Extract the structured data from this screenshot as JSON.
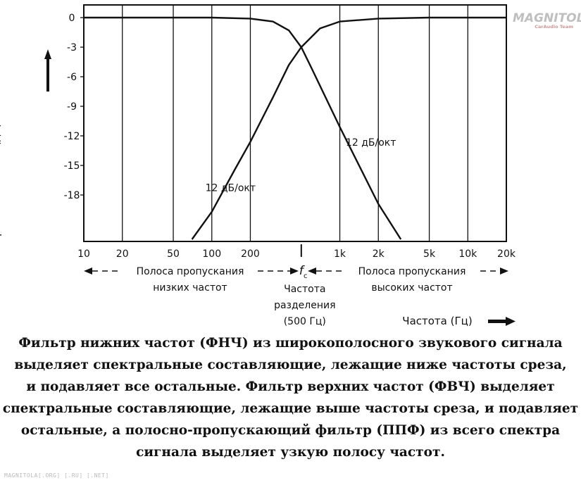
{
  "chart_data": {
    "type": "line",
    "ylabel": "Уровень сигнала (дБ)",
    "xlabel": "Частота (Гц)",
    "y_ticks": [
      "0",
      "-3",
      "-6",
      "-9",
      "-12",
      "-15",
      "-18"
    ],
    "y_tick_values": [
      0,
      -3,
      -6,
      -9,
      -12,
      -15,
      -18
    ],
    "x_ticks": [
      "10",
      "20",
      "50",
      "100",
      "200",
      "1k",
      "2k",
      "5k",
      "10k",
      "20k"
    ],
    "x_tick_values": [
      10,
      20,
      50,
      100,
      200,
      1000,
      2000,
      5000,
      10000,
      20000
    ],
    "x_scale": "log",
    "xlim": [
      10,
      20000
    ],
    "ylim": [
      -22.5,
      0
    ],
    "grid": true,
    "crossover_frequency": 500,
    "crossover_level": -3,
    "crossover_symbol": "f",
    "crossover_symbol_sub": "c",
    "series": [
      {
        "name": "ФНЧ",
        "x": [
          10,
          50,
          100,
          200,
          300,
          400,
          500,
          600,
          1000,
          2000,
          3000
        ],
        "y": [
          0,
          0,
          0,
          -0.1,
          -0.4,
          -1.3,
          -3,
          -5.1,
          -11.1,
          -18.9,
          -22.5
        ]
      },
      {
        "name": "ФВЧ",
        "x": [
          70,
          100,
          150,
          200,
          300,
          400,
          500,
          700,
          1000,
          2000,
          5000,
          20000
        ],
        "y": [
          -22.5,
          -19.7,
          -15.5,
          -12.6,
          -8.1,
          -4.8,
          -3,
          -1.1,
          -0.4,
          -0.1,
          0,
          0
        ]
      }
    ],
    "annotations": [
      {
        "text": "12 дБ/окт",
        "x": 140,
        "y": -17.6
      },
      {
        "text": "12 дБ/окт",
        "x": 1750,
        "y": -13
      }
    ],
    "bands": {
      "low": [
        "Полоса пропускания",
        "низких частот"
      ],
      "crossover": [
        "Частота",
        "разделения",
        "(500 Гц)"
      ],
      "high": [
        "Полоса пропускания",
        "высоких частот"
      ]
    }
  },
  "caption_lines": [
    "Фильтр нижних частот (ФНЧ) из широкополосного звукового сигнала",
    "выделяет спектральные составляющие, лежащие ниже частоты среза,",
    "и подавляет все остальные. Фильтр верхних частот (ФВЧ) выделяет",
    "спектральные составляющие, лежащие выше частоты среза, и подавляет",
    "остальные, а полосно-пропускающий фильтр (ППФ) из всего спектра",
    "сигнала выделяет узкую полосу частот."
  ],
  "watermark": {
    "title": "MAGNITOLA",
    "subtitle": "CarAudio Team"
  },
  "footer": "MAGNITOLA[.ORG] [.RU] [.NET]",
  "colors": {
    "ink": "#111111",
    "background": "#ffffff",
    "watermark": "#bfbfbf"
  }
}
